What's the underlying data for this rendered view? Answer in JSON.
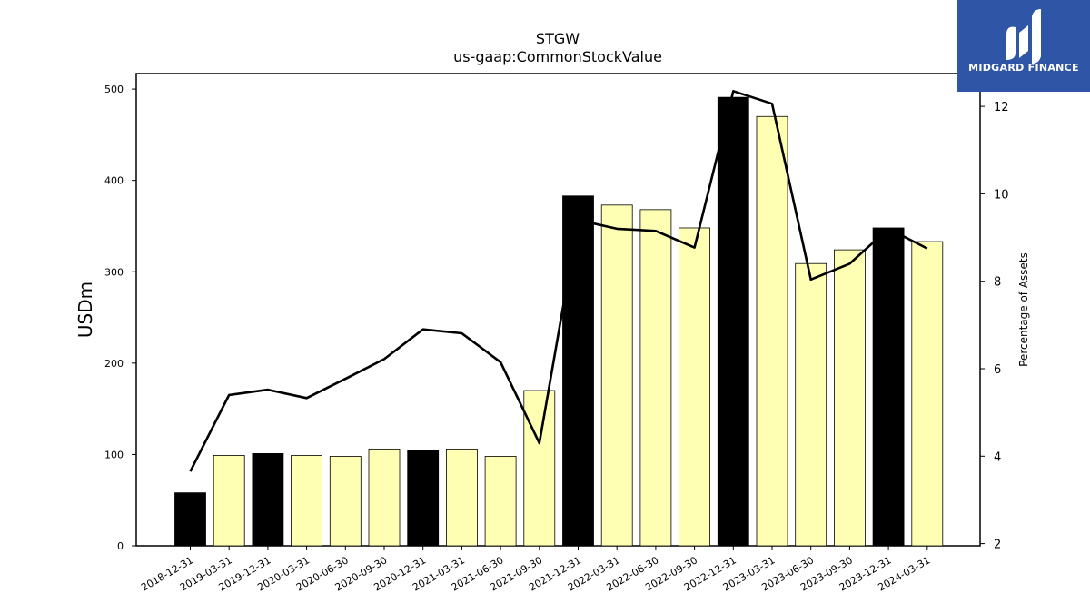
{
  "chart_data": {
    "type": "bar",
    "title": "STGW",
    "subtitle": "us-gaap:CommonStockValue",
    "ylabel": "USDm",
    "y2label": "Percentage of Assets",
    "ylim": [
      0,
      517
    ],
    "y2lim": [
      1.95,
      12.75
    ],
    "yticks": [
      0,
      100,
      200,
      300,
      400,
      500
    ],
    "y2ticks": [
      2,
      4,
      6,
      8,
      10,
      12
    ],
    "categories": [
      "2018-12-31",
      "2019-03-31",
      "2019-12-31",
      "2020-03-31",
      "2020-06-30",
      "2020-09-30",
      "2020-12-31",
      "2021-03-31",
      "2021-06-30",
      "2021-09-30",
      "2021-12-31",
      "2022-03-31",
      "2022-06-30",
      "2022-09-30",
      "2022-12-31",
      "2023-03-31",
      "2023-06-30",
      "2023-09-30",
      "2023-12-31",
      "2024-03-31"
    ],
    "series": [
      {
        "kind": "bar",
        "values": [
          58,
          99,
          101,
          99,
          98,
          106,
          104,
          106,
          98,
          170,
          383,
          373,
          368,
          348,
          491,
          470,
          309,
          324,
          348,
          333
        ],
        "highlight": [
          true,
          false,
          true,
          false,
          false,
          false,
          true,
          false,
          false,
          false,
          true,
          false,
          false,
          false,
          true,
          false,
          false,
          false,
          true,
          false
        ],
        "highlight_color": "#000000",
        "color": "#ffffb3"
      },
      {
        "kind": "line",
        "axis": "right",
        "values": [
          3.65,
          5.4,
          5.52,
          5.33,
          5.77,
          6.22,
          6.9,
          6.81,
          6.15,
          4.3,
          9.4,
          9.2,
          9.15,
          8.77,
          12.35,
          12.06,
          8.04,
          8.4,
          9.2,
          8.75
        ],
        "color": "#000000"
      }
    ]
  },
  "logo": {
    "text": "MIDGARD FINANCE",
    "color": "#2f56a6"
  }
}
